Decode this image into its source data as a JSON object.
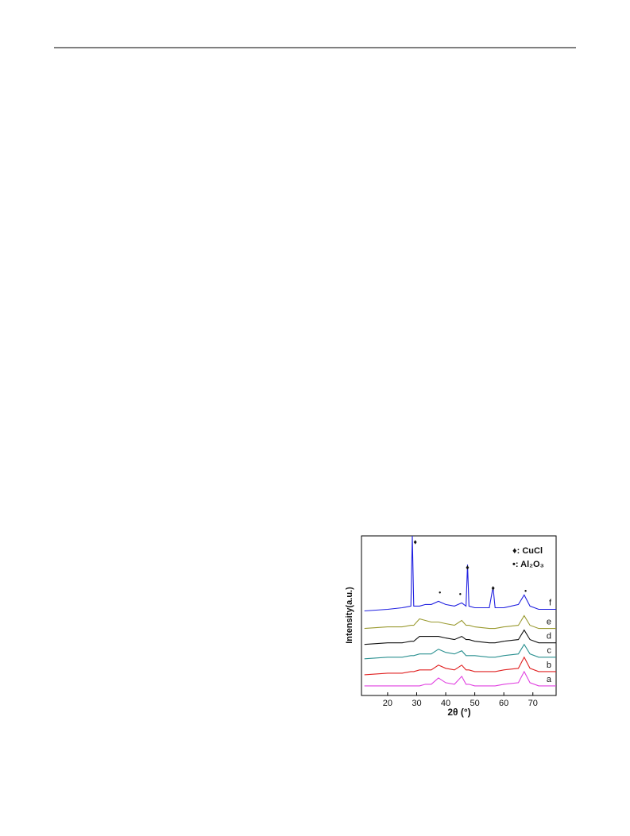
{
  "chart_data": {
    "type": "line",
    "x_label": "2θ (°)",
    "y_label": "Intensity(a.u.)",
    "x": [
      12,
      20,
      25,
      28,
      28.5,
      29,
      31,
      33,
      35,
      37.5,
      40,
      43,
      45.5,
      47,
      47.5,
      48,
      50,
      55,
      56.3,
      57,
      60,
      65,
      67,
      69,
      72,
      78
    ],
    "series": [
      {
        "name": "a",
        "color": "#e040e0",
        "values": [
          6,
          6,
          6,
          6,
          6,
          6,
          6,
          7,
          7,
          11,
          8,
          7,
          12,
          7,
          7,
          7,
          6,
          6,
          6,
          6,
          7,
          8,
          15,
          8,
          6,
          6
        ]
      },
      {
        "name": "b",
        "color": "#e02020",
        "values": [
          13,
          14,
          14,
          15,
          15,
          15,
          16,
          16,
          16,
          19,
          17,
          16,
          19,
          16,
          16,
          16,
          15,
          15,
          15,
          15,
          16,
          17,
          24,
          17,
          15,
          15
        ]
      },
      {
        "name": "c",
        "color": "#2a9090",
        "values": [
          23,
          24,
          24,
          25,
          25,
          25,
          26,
          26,
          26,
          29,
          27,
          26,
          28,
          25,
          25,
          25,
          25,
          24,
          24,
          24,
          25,
          26,
          32,
          26,
          24,
          24
        ]
      },
      {
        "name": "d",
        "color": "#111111",
        "values": [
          32,
          33,
          33,
          34,
          34,
          34,
          37,
          37,
          37,
          37,
          36,
          35,
          37,
          35,
          35,
          35,
          34,
          33,
          33,
          33,
          34,
          35,
          41,
          35,
          33,
          33
        ]
      },
      {
        "name": "e",
        "color": "#9a9a30",
        "values": [
          42,
          43,
          43,
          44,
          44,
          44,
          48,
          47,
          46,
          46,
          45,
          44,
          47,
          44,
          44,
          44,
          43,
          42,
          42,
          42,
          43,
          44,
          50,
          44,
          42,
          42
        ]
      },
      {
        "name": "f",
        "color": "#2020e0",
        "values": [
          53,
          54,
          55,
          56,
          100,
          56,
          56,
          57,
          57,
          59,
          57,
          56,
          58,
          56,
          82,
          56,
          55,
          55,
          68,
          55,
          55,
          57,
          63,
          56,
          54,
          54
        ]
      }
    ],
    "markers": [
      {
        "label": "♦",
        "x": 29.5,
        "y": 96
      },
      {
        "label": "•",
        "x": 38,
        "y": 64
      },
      {
        "label": "•",
        "x": 45,
        "y": 63
      },
      {
        "label": "♦",
        "x": 47.5,
        "y": 80
      },
      {
        "label": "♦",
        "x": 56.3,
        "y": 67
      },
      {
        "label": "•",
        "x": 67.5,
        "y": 65
      }
    ],
    "legend": [
      "♦: CuCl",
      "•: Al₂O₃"
    ],
    "xlim": [
      11,
      78
    ],
    "xticks": [
      20,
      30,
      40,
      50,
      60,
      70
    ],
    "ylim": [
      0,
      100
    ]
  }
}
